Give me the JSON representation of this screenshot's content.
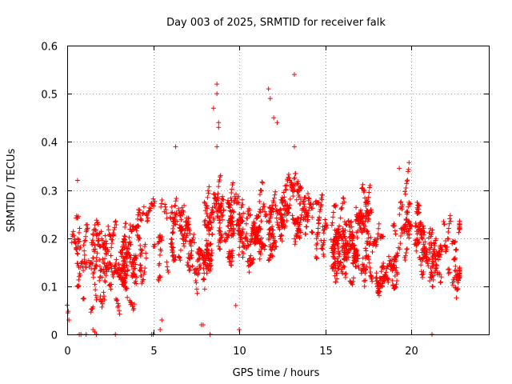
{
  "chart_data": {
    "type": "scatter",
    "title": "Day 003 of 2025, SRMTID for receiver falk",
    "xlabel": "GPS time / hours",
    "ylabel": "SRMTID / TECUs",
    "xlim": [
      0,
      24.5
    ],
    "ylim": [
      0,
      0.6
    ],
    "x_ticks": [
      0,
      5,
      10,
      15,
      20
    ],
    "x_tick_labels": [
      "0",
      "5",
      "10",
      "15",
      "20"
    ],
    "y_ticks": [
      0,
      0.1,
      0.2,
      0.3,
      0.4,
      0.5,
      0.6
    ],
    "y_tick_labels": [
      "0",
      "0.1",
      "0.2",
      "0.3",
      "0.4",
      "0.5",
      "0.6"
    ],
    "grid": true,
    "marker": "+",
    "color": "#ff0000",
    "trend": {
      "x": [
        0,
        0.5,
        1,
        1.5,
        2,
        2.5,
        3,
        3.5,
        4,
        4.5,
        5,
        5.5,
        6,
        6.5,
        7,
        7.5,
        8,
        8.5,
        9,
        9.5,
        10,
        10.5,
        11,
        11.5,
        12,
        12.5,
        13,
        13.5,
        14,
        14.5,
        15,
        15.5,
        16,
        16.5,
        17,
        17.5,
        18,
        18.5,
        19,
        19.5,
        20,
        20.5,
        21,
        21.5,
        22,
        22.5,
        22.8
      ],
      "y": [
        0.11,
        0.15,
        0.16,
        0.15,
        0.14,
        0.15,
        0.13,
        0.16,
        0.18,
        0.19,
        0.18,
        0.21,
        0.22,
        0.2,
        0.2,
        0.19,
        0.18,
        0.21,
        0.23,
        0.22,
        0.21,
        0.2,
        0.22,
        0.23,
        0.25,
        0.26,
        0.27,
        0.26,
        0.25,
        0.23,
        0.2,
        0.18,
        0.19,
        0.21,
        0.22,
        0.21,
        0.17,
        0.13,
        0.16,
        0.22,
        0.24,
        0.2,
        0.13,
        0.18,
        0.19,
        0.15,
        0.12
      ]
    },
    "spread": 0.055,
    "n_points": 2400,
    "notable_points": [
      {
        "x": 13.2,
        "y": 0.54
      },
      {
        "x": 8.7,
        "y": 0.52
      },
      {
        "x": 8.7,
        "y": 0.5
      },
      {
        "x": 11.7,
        "y": 0.51
      },
      {
        "x": 11.8,
        "y": 0.49
      },
      {
        "x": 8.5,
        "y": 0.47
      },
      {
        "x": 8.8,
        "y": 0.44
      },
      {
        "x": 8.8,
        "y": 0.43
      },
      {
        "x": 12.2,
        "y": 0.44
      },
      {
        "x": 12.0,
        "y": 0.45
      },
      {
        "x": 6.3,
        "y": 0.39
      },
      {
        "x": 8.7,
        "y": 0.39
      },
      {
        "x": 13.2,
        "y": 0.39
      },
      {
        "x": 19.3,
        "y": 0.345
      },
      {
        "x": 0.6,
        "y": 0.32
      },
      {
        "x": 7.8,
        "y": 0.02
      },
      {
        "x": 7.9,
        "y": 0.02
      },
      {
        "x": 10.0,
        "y": 0.01
      },
      {
        "x": 5.4,
        "y": 0.01
      },
      {
        "x": 1.5,
        "y": 0.01
      },
      {
        "x": 1.6,
        "y": 0.005
      },
      {
        "x": 0.7,
        "y": 0.0
      },
      {
        "x": 0.8,
        "y": 0.0
      },
      {
        "x": 1.1,
        "y": 0.0
      },
      {
        "x": 1.7,
        "y": 0.0
      },
      {
        "x": 2.8,
        "y": 0.0
      },
      {
        "x": 4.9,
        "y": 0.0
      },
      {
        "x": 5.0,
        "y": 0.0
      },
      {
        "x": 8.3,
        "y": 0.0
      },
      {
        "x": 21.2,
        "y": 0.0
      },
      {
        "x": 0.1,
        "y": 0.03
      },
      {
        "x": 9.8,
        "y": 0.06
      },
      {
        "x": 5.5,
        "y": 0.03
      }
    ]
  }
}
